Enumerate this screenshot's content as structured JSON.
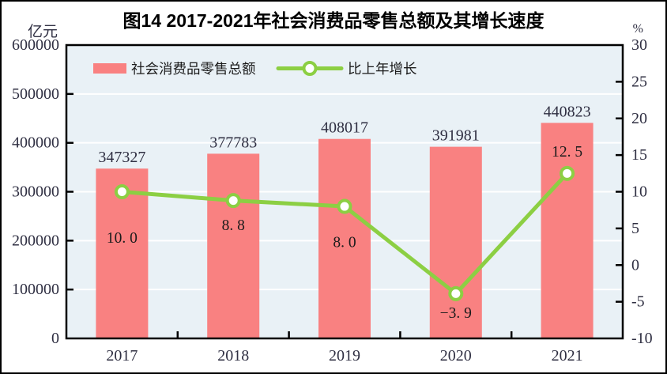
{
  "header": {
    "title": "图14  2017-2021年社会消费品零售总额及其增长速度",
    "left_unit": "亿元",
    "right_unit": "%"
  },
  "legend": [
    {
      "type": "bar",
      "label": "社会消费品零售总额",
      "color": "#f98181"
    },
    {
      "type": "line",
      "label": "比上年增长",
      "color": "#8ccf43"
    }
  ],
  "chart_data": {
    "type": "bar+line combo",
    "title": "图14  2017-2021年社会消费品零售总额及其增长速度",
    "categories": [
      "2017",
      "2018",
      "2019",
      "2020",
      "2021"
    ],
    "series": [
      {
        "name": "社会消费品零售总额",
        "type": "bar",
        "axis": "left",
        "unit": "亿元",
        "values": [
          347327,
          377783,
          408017,
          391981,
          440823
        ],
        "labels": [
          "347327",
          "377783",
          "408017",
          "391981",
          "440823"
        ],
        "color": "#f98181"
      },
      {
        "name": "比上年增长",
        "type": "line",
        "axis": "right",
        "unit": "%",
        "values": [
          10.0,
          8.8,
          8.0,
          -3.9,
          12.5
        ],
        "labels": [
          "10. 0",
          "8. 8",
          "8. 0",
          "−3. 9",
          "12. 5"
        ],
        "label_dy": [
          59,
          32,
          46,
          25,
          -27
        ],
        "color": "#8ccf43",
        "marker": "circle-white-fill"
      }
    ],
    "left_axis": {
      "min": 0,
      "max": 600000,
      "step": 100000,
      "ticks": [
        "600000",
        "500000",
        "400000",
        "300000",
        "200000",
        "100000",
        "0"
      ]
    },
    "right_axis": {
      "min": -10,
      "max": 30,
      "step": 5,
      "ticks": [
        "30",
        "25",
        "20",
        "15",
        "10",
        "5",
        "0",
        "-5",
        "-10"
      ]
    },
    "grid": "horizontal white lines at each left-axis step",
    "legend_position": "top-left inside plot",
    "colors": {
      "plot_bg": "#e9f1f6",
      "grid_color": "#ffffff",
      "border_color": "#000000",
      "axis_text_color": "#2f2f42",
      "annotation_color": "#1b1b1b"
    }
  }
}
